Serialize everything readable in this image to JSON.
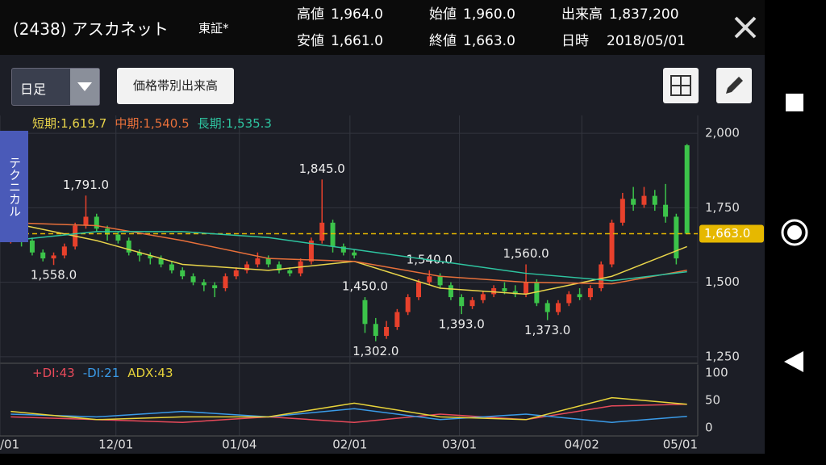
{
  "header": {
    "title": "(2438) アスカネット",
    "market": "東証*",
    "quotes": [
      {
        "label": "高値",
        "value": "1,964.0"
      },
      {
        "label": "始値",
        "value": "1,960.0"
      },
      {
        "label": "出来高",
        "value": "1,837,200"
      },
      {
        "label": "安値",
        "value": "1,661.0"
      },
      {
        "label": "終値",
        "value": "1,663.0"
      },
      {
        "label": "日時",
        "value": "2018/05/01"
      }
    ]
  },
  "toolbar": {
    "period": "日足",
    "volume_button": "価格帯別出来高",
    "side_tab": "テクニカル"
  },
  "chart_data": [
    {
      "type": "candlestick",
      "candle_colors": {
        "up": "#e8412c",
        "down": "#3cc44a"
      },
      "candles": [
        [
          1640,
          1660,
          1680,
          1630
        ],
        [
          1660,
          1640,
          1690,
          1620
        ],
        [
          1640,
          1600,
          1650,
          1590
        ],
        [
          1600,
          1580,
          1610,
          1570
        ],
        [
          1580,
          1590,
          1600,
          1558
        ],
        [
          1590,
          1620,
          1630,
          1580
        ],
        [
          1620,
          1690,
          1700,
          1610
        ],
        [
          1690,
          1720,
          1791,
          1680
        ],
        [
          1720,
          1680,
          1730,
          1670
        ],
        [
          1680,
          1660,
          1690,
          1640
        ],
        [
          1660,
          1640,
          1670,
          1630
        ],
        [
          1640,
          1600,
          1650,
          1590
        ],
        [
          1600,
          1590,
          1610,
          1570
        ],
        [
          1590,
          1580,
          1600,
          1560
        ],
        [
          1580,
          1560,
          1590,
          1550
        ],
        [
          1560,
          1540,
          1570,
          1530
        ],
        [
          1540,
          1520,
          1550,
          1510
        ],
        [
          1520,
          1500,
          1530,
          1490
        ],
        [
          1500,
          1490,
          1510,
          1470
        ],
        [
          1490,
          1480,
          1500,
          1450
        ],
        [
          1480,
          1520,
          1530,
          1470
        ],
        [
          1520,
          1540,
          1550,
          1510
        ],
        [
          1540,
          1560,
          1570,
          1530
        ],
        [
          1560,
          1580,
          1600,
          1550
        ],
        [
          1580,
          1560,
          1590,
          1550
        ],
        [
          1560,
          1540,
          1570,
          1530
        ],
        [
          1540,
          1530,
          1550,
          1520
        ],
        [
          1530,
          1570,
          1580,
          1520
        ],
        [
          1570,
          1640,
          1650,
          1560
        ],
        [
          1640,
          1700,
          1845,
          1630
        ],
        [
          1700,
          1620,
          1710,
          1600
        ],
        [
          1620,
          1600,
          1630,
          1590
        ],
        [
          1600,
          1590,
          1610,
          1580
        ],
        [
          1440,
          1360,
          1450,
          1330
        ],
        [
          1360,
          1320,
          1380,
          1302
        ],
        [
          1320,
          1350,
          1370,
          1310
        ],
        [
          1350,
          1400,
          1410,
          1340
        ],
        [
          1400,
          1450,
          1460,
          1390
        ],
        [
          1450,
          1500,
          1510,
          1440
        ],
        [
          1500,
          1520,
          1540,
          1490
        ],
        [
          1520,
          1490,
          1530,
          1480
        ],
        [
          1490,
          1450,
          1500,
          1440
        ],
        [
          1450,
          1420,
          1460,
          1393
        ],
        [
          1420,
          1440,
          1450,
          1410
        ],
        [
          1440,
          1460,
          1470,
          1430
        ],
        [
          1460,
          1480,
          1490,
          1450
        ],
        [
          1480,
          1470,
          1500,
          1460
        ],
        [
          1470,
          1460,
          1490,
          1450
        ],
        [
          1460,
          1500,
          1560,
          1450
        ],
        [
          1500,
          1430,
          1510,
          1420
        ],
        [
          1430,
          1400,
          1440,
          1373
        ],
        [
          1400,
          1430,
          1440,
          1390
        ],
        [
          1430,
          1460,
          1470,
          1420
        ],
        [
          1460,
          1450,
          1480,
          1440
        ],
        [
          1450,
          1480,
          1490,
          1440
        ],
        [
          1480,
          1560,
          1570,
          1470
        ],
        [
          1560,
          1700,
          1710,
          1550
        ],
        [
          1700,
          1780,
          1800,
          1690
        ],
        [
          1780,
          1760,
          1820,
          1740
        ],
        [
          1760,
          1790,
          1820,
          1750
        ],
        [
          1790,
          1760,
          1810,
          1740
        ],
        [
          1760,
          1720,
          1830,
          1700
        ],
        [
          1720,
          1580,
          1730,
          1560
        ],
        [
          1960,
          1663,
          1964,
          1661
        ]
      ],
      "x": [
        0,
        8,
        16,
        24,
        32,
        40,
        48,
        56,
        63
      ],
      "series": [
        {
          "name": "短期:",
          "value_label": "1,619.7",
          "color": "#e8d44a",
          "values": [
            1700,
            1640,
            1560,
            1540,
            1570,
            1480,
            1460,
            1520,
            1619.7
          ]
        },
        {
          "name": "中期:",
          "value_label": "1,540.5",
          "color": "#e8703a",
          "values": [
            1700,
            1690,
            1640,
            1580,
            1570,
            1520,
            1500,
            1495,
            1540.5
          ]
        },
        {
          "name": "長期:",
          "value_label": "1,535.3",
          "color": "#2ec4a0",
          "values": [
            1640,
            1670,
            1670,
            1650,
            1610,
            1570,
            1530,
            1505,
            1535.3
          ]
        }
      ],
      "annotations": [
        {
          "label": "1,791.0",
          "value": 1791
        },
        {
          "label": "1,558.0",
          "value": 1558
        },
        {
          "label": "1,450.0",
          "value": 1450
        },
        {
          "label": "1,845.0",
          "value": 1845
        },
        {
          "label": "1,302.0",
          "value": 1302
        },
        {
          "label": "1,540.0",
          "value": 1540
        },
        {
          "label": "1,393.0",
          "value": 1393
        },
        {
          "label": "1,560.0",
          "value": 1560
        },
        {
          "label": "1,373.0",
          "value": 1373
        }
      ],
      "current": {
        "label": "1,663.0",
        "value": 1663,
        "color": "#e6b800"
      },
      "ylim": [
        1228,
        2060
      ],
      "yticks": [
        {
          "value": 2000,
          "label": "2,000"
        },
        {
          "value": 1750,
          "label": "1,750"
        },
        {
          "value": 1500,
          "label": "1,500"
        },
        {
          "value": 1250,
          "label": "1,250"
        }
      ],
      "xlim": [
        -1,
        64
      ],
      "xticks": [
        {
          "value": -1,
          "label": "/01"
        },
        {
          "value": 9.8,
          "label": "12/01"
        },
        {
          "value": 21.3,
          "label": "01/04"
        },
        {
          "value": 31.6,
          "label": "02/01"
        },
        {
          "value": 41.8,
          "label": "03/01"
        },
        {
          "value": 53.2,
          "label": "04/02"
        },
        {
          "value": 64,
          "label": "05/01"
        }
      ],
      "grid": true
    },
    {
      "type": "line",
      "x": [
        0,
        8,
        16,
        24,
        32,
        40,
        48,
        56,
        63
      ],
      "series": [
        {
          "name": "+DI:",
          "value_label": "43",
          "color": "#e84a5a",
          "values": [
            20,
            15,
            10,
            20,
            10,
            25,
            15,
            40,
            43
          ]
        },
        {
          "name": "-DI:",
          "value_label": "21",
          "color": "#3a9be8",
          "values": [
            25,
            20,
            30,
            20,
            35,
            15,
            25,
            10,
            21
          ]
        },
        {
          "name": "ADX:",
          "value_label": "43",
          "color": "#e8d43a",
          "values": [
            30,
            15,
            20,
            20,
            45,
            20,
            15,
            55,
            43
          ]
        }
      ],
      "ylim": [
        -14.7,
        114.7
      ],
      "yticks": [
        0,
        50,
        100
      ],
      "xlim": [
        -1,
        64
      ]
    }
  ]
}
